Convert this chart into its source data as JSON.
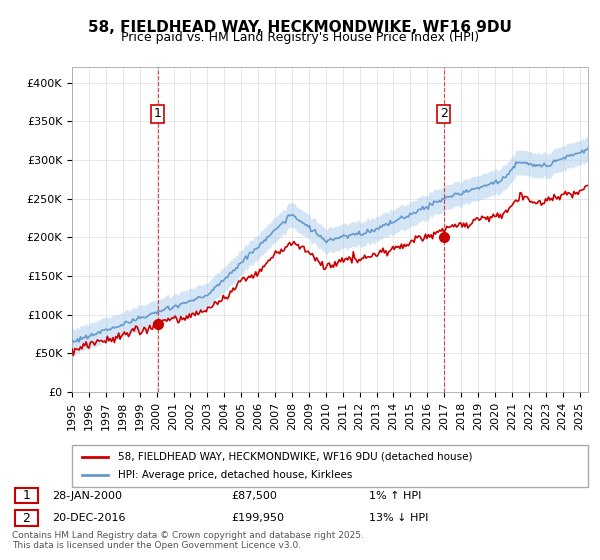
{
  "title": "58, FIELDHEAD WAY, HECKMONDWIKE, WF16 9DU",
  "subtitle": "Price paid vs. HM Land Registry's House Price Index (HPI)",
  "ylabel_labels": [
    "£0",
    "£50K",
    "£100K",
    "£150K",
    "£200K",
    "£250K",
    "£300K",
    "£350K",
    "£400K"
  ],
  "ylabel_values": [
    0,
    50000,
    100000,
    150000,
    200000,
    250000,
    300000,
    350000,
    400000
  ],
  "ylim": [
    0,
    420000
  ],
  "xlim_year": [
    1995,
    2025.5
  ],
  "red_line_color": "#cc0000",
  "blue_line_color": "#6699cc",
  "blue_fill_color": "#aaccee",
  "marker1_year": 2000.08,
  "marker1_value": 87500,
  "marker2_year": 2016.97,
  "marker2_value": 199950,
  "legend_label_red": "58, FIELDHEAD WAY, HECKMONDWIKE, WF16 9DU (detached house)",
  "legend_label_blue": "HPI: Average price, detached house, Kirklees",
  "annotation1_label": "1",
  "annotation2_label": "2",
  "table_row1": "1    28-JAN-2000              £87,500           1% ↑ HPI",
  "table_row2": "2    20-DEC-2016              £199,950         13% ↓ HPI",
  "footer": "Contains HM Land Registry data © Crown copyright and database right 2025.\nThis data is licensed under the Open Government Licence v3.0.",
  "background_color": "#ffffff",
  "grid_color": "#dddddd",
  "title_fontsize": 11,
  "subtitle_fontsize": 9,
  "tick_fontsize": 8
}
